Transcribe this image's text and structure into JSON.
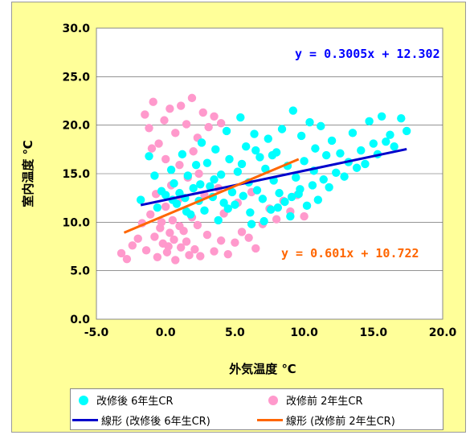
{
  "chart_data": {
    "type": "scatter",
    "xlabel": "外気温度 ℃",
    "ylabel": "室内温度 ℃",
    "xlim": [
      -5,
      20
    ],
    "ylim": [
      0,
      30
    ],
    "x_ticks": [
      "-5.0",
      "0.0",
      "5.0",
      "10.0",
      "15.0",
      "20.0"
    ],
    "y_ticks": [
      "0.0",
      "5.0",
      "10.0",
      "15.0",
      "20.0",
      "25.0",
      "30.0"
    ],
    "grid": "horizontal",
    "series": [
      {
        "name": "改修後 6年生CR",
        "type": "scatter",
        "color": "#00ffff",
        "points": [
          [
            -1.8,
            12.3
          ],
          [
            -1.2,
            16.8
          ],
          [
            -0.6,
            11.5
          ],
          [
            -0.3,
            13.2
          ],
          [
            0.0,
            12.8
          ],
          [
            0.4,
            15.4
          ],
          [
            0.6,
            14.0
          ],
          [
            0.8,
            11.9
          ],
          [
            1.0,
            13.0
          ],
          [
            1.2,
            17.0
          ],
          [
            1.4,
            12.5
          ],
          [
            1.6,
            14.8
          ],
          [
            1.8,
            10.8
          ],
          [
            2.0,
            13.5
          ],
          [
            2.2,
            15.9
          ],
          [
            2.4,
            12.2
          ],
          [
            2.6,
            18.2
          ],
          [
            2.8,
            11.2
          ],
          [
            3.0,
            16.1
          ],
          [
            3.2,
            13.7
          ],
          [
            3.4,
            12.6
          ],
          [
            3.6,
            17.5
          ],
          [
            3.8,
            10.2
          ],
          [
            4.0,
            14.9
          ],
          [
            4.2,
            12.0
          ],
          [
            4.4,
            19.4
          ],
          [
            4.6,
            16.5
          ],
          [
            4.8,
            13.1
          ],
          [
            5.0,
            11.8
          ],
          [
            5.2,
            15.2
          ],
          [
            5.4,
            20.8
          ],
          [
            5.6,
            12.7
          ],
          [
            5.8,
            17.8
          ],
          [
            6.0,
            14.1
          ],
          [
            6.2,
            9.8
          ],
          [
            6.4,
            19.1
          ],
          [
            6.6,
            13.3
          ],
          [
            6.8,
            16.7
          ],
          [
            7.0,
            12.4
          ],
          [
            7.2,
            15.5
          ],
          [
            7.4,
            18.6
          ],
          [
            7.6,
            11.3
          ],
          [
            7.8,
            14.3
          ],
          [
            8.0,
            17.2
          ],
          [
            8.2,
            13.0
          ],
          [
            8.4,
            19.6
          ],
          [
            8.6,
            12.1
          ],
          [
            8.8,
            15.8
          ],
          [
            9.0,
            10.6
          ],
          [
            9.2,
            21.5
          ],
          [
            9.4,
            14.6
          ],
          [
            9.6,
            12.9
          ],
          [
            9.8,
            18.9
          ],
          [
            10.0,
            16.3
          ],
          [
            10.2,
            11.7
          ],
          [
            10.4,
            20.3
          ],
          [
            10.6,
            13.8
          ],
          [
            10.8,
            17.6
          ],
          [
            11.0,
            12.3
          ],
          [
            11.2,
            19.9
          ],
          [
            11.4,
            14.4
          ],
          [
            11.6,
            16.9
          ],
          [
            11.8,
            13.6
          ],
          [
            12.0,
            18.4
          ],
          [
            12.3,
            15.1
          ],
          [
            12.6,
            17.1
          ],
          [
            12.9,
            14.7
          ],
          [
            13.2,
            16.2
          ],
          [
            13.5,
            19.2
          ],
          [
            13.8,
            15.6
          ],
          [
            14.1,
            17.4
          ],
          [
            14.4,
            16.0
          ],
          [
            14.7,
            20.4
          ],
          [
            15.0,
            18.1
          ],
          [
            15.3,
            17.0
          ],
          [
            15.6,
            20.9
          ],
          [
            15.9,
            18.3
          ],
          [
            16.2,
            19.0
          ],
          [
            16.5,
            17.8
          ],
          [
            17.0,
            20.7
          ],
          [
            17.4,
            19.4
          ],
          [
            6.1,
            11.0
          ],
          [
            7.1,
            10.1
          ],
          [
            8.1,
            11.5
          ],
          [
            9.1,
            12.6
          ],
          [
            4.5,
            11.4
          ],
          [
            3.5,
            14.4
          ],
          [
            5.5,
            16.0
          ],
          [
            6.5,
            17.4
          ],
          [
            2.5,
            13.9
          ],
          [
            1.5,
            11.1
          ],
          [
            0.5,
            12.3
          ],
          [
            -0.8,
            14.8
          ],
          [
            7.7,
            16.9
          ],
          [
            9.7,
            13.4
          ],
          [
            10.7,
            15.3
          ]
        ]
      },
      {
        "name": "改修前 2年生CR",
        "type": "scatter",
        "color": "#ff99cc",
        "points": [
          [
            -3.2,
            6.8
          ],
          [
            -2.8,
            6.2
          ],
          [
            -2.4,
            7.6
          ],
          [
            -2.0,
            8.3
          ],
          [
            -1.7,
            9.9
          ],
          [
            -1.4,
            7.1
          ],
          [
            -1.1,
            10.8
          ],
          [
            -0.8,
            8.5
          ],
          [
            -0.6,
            6.4
          ],
          [
            -0.4,
            9.4
          ],
          [
            -0.2,
            7.8
          ],
          [
            0.0,
            11.6
          ],
          [
            0.1,
            6.9
          ],
          [
            0.3,
            8.9
          ],
          [
            0.5,
            10.2
          ],
          [
            0.7,
            6.1
          ],
          [
            0.9,
            12.3
          ],
          [
            1.1,
            7.4
          ],
          [
            1.3,
            9.1
          ],
          [
            1.5,
            8.0
          ],
          [
            1.7,
            6.6
          ],
          [
            1.9,
            10.5
          ],
          [
            2.1,
            7.2
          ],
          [
            2.3,
            9.7
          ],
          [
            2.5,
            6.5
          ],
          [
            0.2,
            7.5
          ],
          [
            -0.3,
            10.0
          ],
          [
            0.6,
            8.2
          ],
          [
            1.0,
            9.6
          ],
          [
            -1.5,
            21.1
          ],
          [
            -1.2,
            19.7
          ],
          [
            -0.9,
            22.4
          ],
          [
            -0.5,
            18.1
          ],
          [
            -0.1,
            20.5
          ],
          [
            0.3,
            21.7
          ],
          [
            0.7,
            19.2
          ],
          [
            1.1,
            22.0
          ],
          [
            1.5,
            20.1
          ],
          [
            1.9,
            22.8
          ],
          [
            2.3,
            18.7
          ],
          [
            2.7,
            21.3
          ],
          [
            3.1,
            19.8
          ],
          [
            3.5,
            20.9
          ],
          [
            4.0,
            20.2
          ],
          [
            -1.0,
            17.6
          ],
          [
            0.0,
            16.5
          ],
          [
            1.0,
            15.9
          ],
          [
            2.0,
            17.3
          ],
          [
            3.0,
            8.7
          ],
          [
            3.5,
            7.0
          ],
          [
            4.0,
            8.1
          ],
          [
            4.5,
            6.7
          ],
          [
            5.0,
            7.9
          ],
          [
            5.5,
            9.0
          ],
          [
            6.0,
            8.4
          ],
          [
            6.5,
            7.3
          ],
          [
            7.0,
            9.8
          ],
          [
            7.5,
            11.4
          ],
          [
            8.0,
            10.3
          ],
          [
            8.5,
            12.2
          ],
          [
            9.0,
            11.1
          ],
          [
            9.5,
            12.8
          ],
          [
            10.0,
            10.6
          ],
          [
            4.2,
            10.9
          ],
          [
            5.2,
            12.0
          ],
          [
            6.2,
            13.1
          ],
          [
            2.8,
            12.8
          ],
          [
            3.8,
            13.5
          ],
          [
            -0.7,
            12.9
          ],
          [
            0.4,
            13.8
          ],
          [
            1.6,
            14.6
          ],
          [
            2.4,
            15.0
          ]
        ]
      }
    ],
    "trendlines": [
      {
        "name": "線形 (改修後 6年生CR)",
        "color": "#0000cc",
        "slope": 0.3005,
        "intercept": 12.302,
        "x_range": [
          -1.8,
          17.4
        ]
      },
      {
        "name": "線形 (改修前 2年生CR)",
        "color": "#ff6600",
        "slope": 0.601,
        "intercept": 10.722,
        "x_range": [
          -3.0,
          9.6
        ]
      }
    ],
    "annotations": [
      {
        "text": "y = 0.3005x + 12.302",
        "color": "#0000ff"
      },
      {
        "text": "y = 0.601x + 10.722",
        "color": "#ff6600"
      }
    ],
    "legend": {
      "position": "bottom",
      "items": [
        {
          "label": "改修後 6年生CR",
          "kind": "marker",
          "color": "#00ffff"
        },
        {
          "label": "改修前 2年生CR",
          "kind": "marker",
          "color": "#ff99cc"
        },
        {
          "label": "線形 (改修後 6年生CR)",
          "kind": "line",
          "color": "#0000cc"
        },
        {
          "label": "線形 (改修前 2年生CR)",
          "kind": "line",
          "color": "#ff6600"
        }
      ]
    },
    "colors": {
      "plot_background": "#ffffff",
      "chart_background": "#ffff99",
      "negative_tick": "#ff0000"
    }
  }
}
